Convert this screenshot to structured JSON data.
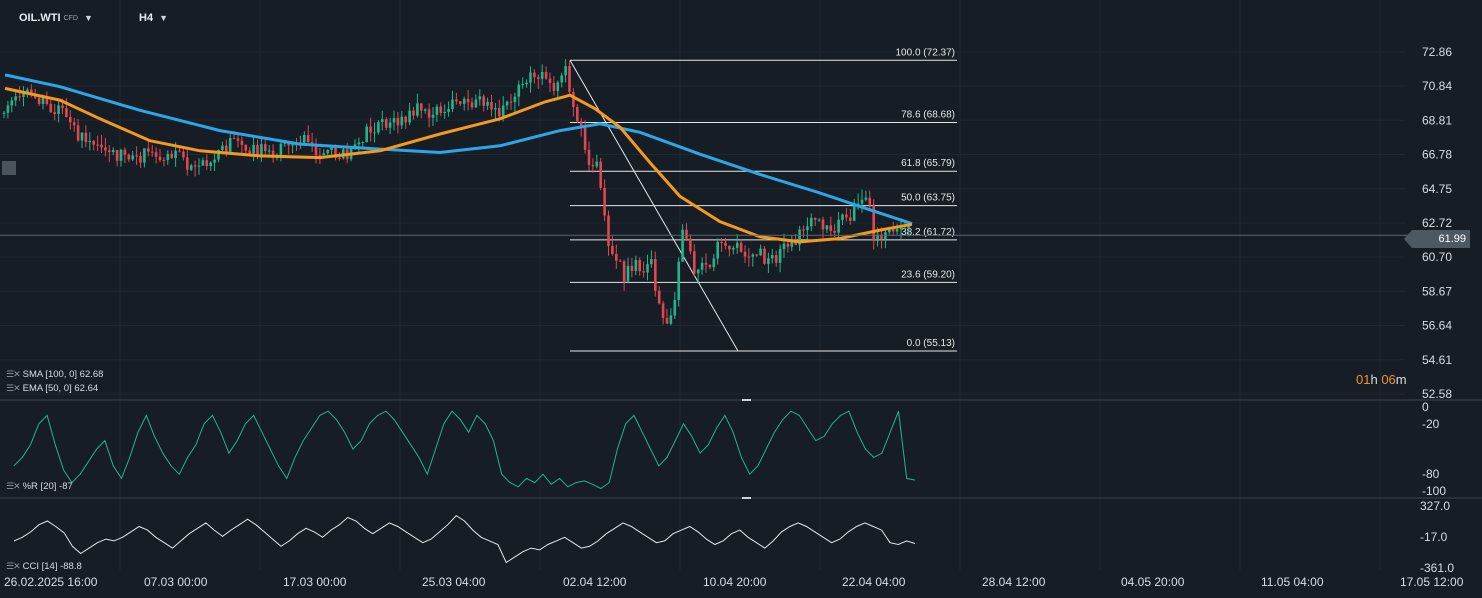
{
  "toolbar": {
    "symbol": "OIL.WTI",
    "symbol_type": "CFD",
    "timeframe": "H4"
  },
  "colors": {
    "background": "#161d25",
    "grid": "#1f2731",
    "up": "#22b58c",
    "down": "#e2474f",
    "sma": "#2aa7e8",
    "ema": "#f39a1e",
    "oscillator_wr": "#22b58c",
    "oscillator_cci": "#e6e6e6",
    "fib": "#e6e6e6",
    "price_line": "#5a6470",
    "countdown": "#f0961e"
  },
  "indicators": {
    "sma_label": "SMA [100, 0]",
    "sma_value": "62.68",
    "ema_label": "EMA [50, 0]",
    "ema_value": "62.64",
    "wr_label": "%R [20]",
    "wr_value": "-87",
    "cci_label": "CCI [14]",
    "cci_value": "-88.8"
  },
  "current_price": "61.99",
  "countdown": {
    "hours": "01",
    "h_unit": "h",
    "minutes": "06",
    "m_unit": "m"
  },
  "chart_data": {
    "type": "candlestick",
    "price_axis": {
      "ticks": [
        "72.86",
        "70.84",
        "68.81",
        "66.78",
        "64.75",
        "62.72",
        "60.70",
        "58.67",
        "56.64",
        "54.61",
        "52.58"
      ],
      "range": [
        52.58,
        72.86
      ]
    },
    "wr_axis": {
      "ticks": [
        "0",
        "-20",
        "-80",
        "-100"
      ],
      "range": [
        -100,
        0
      ]
    },
    "cci_axis": {
      "ticks": [
        "327.0",
        "-17.0",
        "-361.0"
      ],
      "range": [
        -361,
        327
      ]
    },
    "time_axis": {
      "ticks": [
        "26.02.2025  16:00",
        "07.03  00:00",
        "17.03  00:00",
        "25.03  04:00",
        "02.04  12:00",
        "10.04  20:00",
        "22.04  04:00",
        "28.04  12:00",
        "04.05  20:00",
        "11.05  04:00",
        "17.05  12:00"
      ]
    },
    "fibonacci": {
      "levels": [
        {
          "label": "100.0 (72.37)",
          "price": 72.37
        },
        {
          "label": "78.6 (68.68)",
          "price": 68.68
        },
        {
          "label": "61.8 (65.79)",
          "price": 65.79
        },
        {
          "label": "50.0 (63.75)",
          "price": 63.75
        },
        {
          "label": "38.2 (61.72)",
          "price": 61.72
        },
        {
          "label": "23.6 (59.20)",
          "price": 59.2
        },
        {
          "label": "0.0 (55.13)",
          "price": 55.13
        }
      ]
    },
    "close_path": [
      [
        0,
        69.2
      ],
      [
        14,
        69.8
      ],
      [
        28,
        70.2
      ],
      [
        40,
        70.0
      ],
      [
        52,
        69.6
      ],
      [
        62,
        69.3
      ],
      [
        70,
        68.6
      ],
      [
        78,
        67.9
      ],
      [
        86,
        67.5
      ],
      [
        94,
        67.1
      ],
      [
        102,
        66.8
      ],
      [
        110,
        66.5
      ],
      [
        120,
        66.9
      ],
      [
        130,
        66.2
      ],
      [
        142,
        66.6
      ],
      [
        152,
        67.3
      ],
      [
        162,
        66.7
      ],
      [
        172,
        66.9
      ],
      [
        182,
        66.4
      ],
      [
        192,
        65.8
      ],
      [
        202,
        66.3
      ],
      [
        212,
        66.6
      ],
      [
        222,
        67.1
      ],
      [
        234,
        67.6
      ],
      [
        244,
        67.3
      ],
      [
        254,
        66.9
      ],
      [
        264,
        67.0
      ],
      [
        274,
        66.8
      ],
      [
        284,
        67.2
      ],
      [
        294,
        67.7
      ],
      [
        306,
        67.9
      ],
      [
        316,
        67.1
      ],
      [
        326,
        66.9
      ],
      [
        336,
        67.0
      ],
      [
        346,
        66.7
      ],
      [
        356,
        67.4
      ],
      [
        366,
        68.1
      ],
      [
        376,
        68.3
      ],
      [
        388,
        68.6
      ],
      [
        398,
        68.8
      ],
      [
        408,
        69.2
      ],
      [
        418,
        69.6
      ],
      [
        428,
        69.2
      ],
      [
        440,
        69.6
      ],
      [
        450,
        69.9
      ],
      [
        460,
        69.6
      ],
      [
        472,
        69.9
      ],
      [
        482,
        70.1
      ],
      [
        492,
        69.7
      ],
      [
        502,
        69.4
      ],
      [
        512,
        69.8
      ],
      [
        522,
        70.9
      ],
      [
        532,
        71.6
      ],
      [
        542,
        71.3
      ],
      [
        552,
        70.9
      ],
      [
        562,
        71.4
      ],
      [
        568,
        71.7
      ],
      [
        571,
        69.7
      ],
      [
        576,
        69.1
      ],
      [
        582,
        68.4
      ],
      [
        586,
        66.8
      ],
      [
        592,
        66.4
      ],
      [
        598,
        65.9
      ],
      [
        604,
        63.4
      ],
      [
        608,
        61.6
      ],
      [
        612,
        60.6
      ],
      [
        618,
        60.4
      ],
      [
        624,
        59.4
      ],
      [
        630,
        60.1
      ],
      [
        636,
        60.8
      ],
      [
        642,
        59.6
      ],
      [
        648,
        60.6
      ],
      [
        652,
        60.1
      ],
      [
        656,
        58.2
      ],
      [
        660,
        57.4
      ],
      [
        664,
        56.6
      ],
      [
        668,
        57.2
      ],
      [
        672,
        56.7
      ],
      [
        676,
        58.4
      ],
      [
        680,
        61.4
      ],
      [
        684,
        62.3
      ],
      [
        688,
        61.6
      ],
      [
        692,
        60.6
      ],
      [
        696,
        59.6
      ],
      [
        700,
        60.2
      ],
      [
        706,
        59.9
      ],
      [
        712,
        60.7
      ],
      [
        718,
        61.3
      ],
      [
        724,
        61.6
      ],
      [
        730,
        61.2
      ],
      [
        736,
        61.7
      ],
      [
        742,
        61.0
      ],
      [
        748,
        60.8
      ],
      [
        754,
        60.6
      ],
      [
        760,
        60.9
      ],
      [
        766,
        60.6
      ],
      [
        772,
        60.9
      ],
      [
        778,
        60.5
      ],
      [
        784,
        61.4
      ],
      [
        790,
        61.9
      ],
      [
        796,
        61.6
      ],
      [
        802,
        62.1
      ],
      [
        808,
        62.7
      ],
      [
        812,
        63.5
      ],
      [
        818,
        62.9
      ],
      [
        824,
        62.4
      ],
      [
        830,
        62.0
      ],
      [
        836,
        62.6
      ],
      [
        842,
        63.1
      ],
      [
        848,
        62.7
      ],
      [
        854,
        63.4
      ],
      [
        860,
        64.1
      ],
      [
        866,
        64.3
      ],
      [
        870,
        63.4
      ],
      [
        874,
        61.9
      ],
      [
        878,
        62.1
      ],
      [
        882,
        61.7
      ],
      [
        888,
        62.2
      ],
      [
        894,
        62.3
      ],
      [
        900,
        62.1
      ],
      [
        906,
        62.4
      ],
      [
        912,
        61.99
      ]
    ],
    "sma_path": [
      [
        5,
        71.5
      ],
      [
        60,
        70.8
      ],
      [
        140,
        69.4
      ],
      [
        220,
        68.2
      ],
      [
        300,
        67.4
      ],
      [
        380,
        67.1
      ],
      [
        440,
        66.9
      ],
      [
        500,
        67.3
      ],
      [
        560,
        68.2
      ],
      [
        600,
        68.6
      ],
      [
        640,
        68.1
      ],
      [
        700,
        66.8
      ],
      [
        760,
        65.6
      ],
      [
        820,
        64.5
      ],
      [
        870,
        63.5
      ],
      [
        912,
        62.68
      ]
    ],
    "ema_path": [
      [
        5,
        70.7
      ],
      [
        60,
        70.0
      ],
      [
        100,
        68.9
      ],
      [
        150,
        67.6
      ],
      [
        200,
        67.0
      ],
      [
        260,
        66.7
      ],
      [
        320,
        66.6
      ],
      [
        380,
        67.0
      ],
      [
        440,
        68.0
      ],
      [
        500,
        68.9
      ],
      [
        545,
        69.9
      ],
      [
        570,
        70.3
      ],
      [
        595,
        69.5
      ],
      [
        620,
        68.4
      ],
      [
        650,
        66.3
      ],
      [
        680,
        64.3
      ],
      [
        720,
        62.8
      ],
      [
        760,
        61.9
      ],
      [
        800,
        61.6
      ],
      [
        840,
        61.8
      ],
      [
        880,
        62.3
      ],
      [
        912,
        62.64
      ]
    ],
    "wr_values": [
      -70,
      -60,
      -45,
      -20,
      -10,
      -45,
      -75,
      -90,
      -80,
      -65,
      -50,
      -40,
      -70,
      -85,
      -60,
      -30,
      -10,
      -35,
      -55,
      -70,
      -80,
      -60,
      -45,
      -20,
      -10,
      -30,
      -55,
      -40,
      -20,
      -10,
      -30,
      -50,
      -70,
      -85,
      -60,
      -40,
      -25,
      -10,
      -5,
      -15,
      -30,
      -50,
      -40,
      -20,
      -10,
      -5,
      -15,
      -30,
      -45,
      -60,
      -80,
      -50,
      -20,
      -5,
      -15,
      -30,
      -10,
      -20,
      -40,
      -80,
      -90,
      -95,
      -85,
      -90,
      -80,
      -92,
      -85,
      -95,
      -90,
      -88,
      -92,
      -97,
      -90,
      -50,
      -20,
      -10,
      -30,
      -50,
      -70,
      -60,
      -40,
      -20,
      -35,
      -55,
      -45,
      -25,
      -10,
      -30,
      -60,
      -80,
      -70,
      -50,
      -30,
      -15,
      -5,
      -10,
      -25,
      -40,
      -35,
      -20,
      -10,
      -5,
      -30,
      -50,
      -60,
      -55,
      -30,
      -5,
      -85,
      -87
    ],
    "cci_values": [
      -60,
      -20,
      40,
      120,
      160,
      100,
      30,
      -120,
      -200,
      -140,
      -80,
      -40,
      -60,
      -20,
      40,
      100,
      60,
      -20,
      -80,
      -140,
      -60,
      20,
      80,
      140,
      60,
      -10,
      60,
      120,
      180,
      120,
      40,
      -40,
      -120,
      -60,
      20,
      80,
      40,
      -20,
      60,
      120,
      200,
      160,
      80,
      20,
      80,
      140,
      100,
      40,
      -20,
      -80,
      -40,
      40,
      120,
      220,
      160,
      60,
      -20,
      -60,
      -100,
      -300,
      -240,
      -180,
      -140,
      -160,
      -100,
      -60,
      -20,
      -80,
      -140,
      -120,
      -60,
      20,
      80,
      140,
      100,
      40,
      -20,
      -80,
      -60,
      20,
      60,
      100,
      40,
      -40,
      -100,
      -60,
      20,
      60,
      -20,
      -80,
      -140,
      -60,
      40,
      100,
      140,
      100,
      40,
      -20,
      -80,
      -40,
      40,
      100,
      140,
      100,
      60,
      -80,
      -100,
      -60,
      -88.8
    ]
  }
}
